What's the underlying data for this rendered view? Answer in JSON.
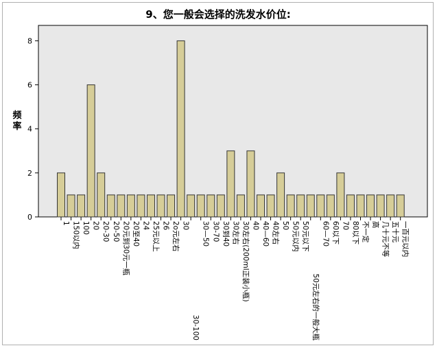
{
  "chart_data": {
    "type": "bar",
    "title": "9、您一般会选择的洗发水价位:",
    "ylabel": "频率",
    "xlabel": "",
    "ylim": [
      0,
      8.7
    ],
    "yticks": [
      0,
      2,
      4,
      6,
      8
    ],
    "grid": false,
    "colors": {
      "bar_fill": "#d6cd98",
      "bar_stroke": "#333333",
      "plot_bg": "#e8e8e8"
    },
    "categories": [
      "1",
      "150以内",
      "100",
      "20",
      "20-30",
      "20-50",
      "20元到30元一瓶",
      "20至40",
      "24",
      "25元以上",
      "26",
      "2o元左右",
      "30",
      "30-100",
      "30—50",
      "30-70",
      "30到40",
      "30左右",
      "30左右(200ml正装小瓶)",
      "40",
      "40—60",
      "40左右",
      "50",
      "50元以内",
      "50元以下",
      "50元左右的一般大瓶",
      "60—70",
      "60以下",
      "70",
      "80以下",
      "不一定",
      "高",
      "几十元不等",
      "五十元",
      "一百元以内"
    ],
    "values": [
      2,
      1,
      1,
      6,
      2,
      1,
      1,
      1,
      1,
      1,
      1,
      1,
      8,
      1,
      1,
      1,
      1,
      3,
      1,
      3,
      1,
      1,
      2,
      1,
      1,
      1,
      1,
      1,
      2,
      1,
      1,
      1,
      1,
      1,
      1
    ]
  }
}
